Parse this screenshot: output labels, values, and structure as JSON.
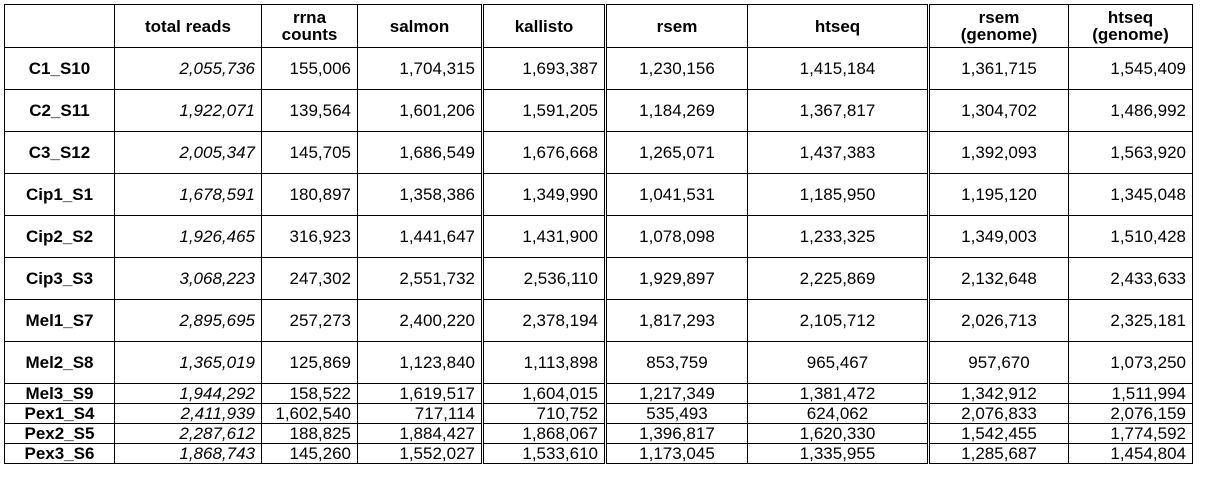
{
  "table": {
    "headers": [
      "",
      "total reads",
      "rrna counts",
      "salmon",
      "kallisto",
      "rsem",
      "htseq",
      "rsem (genome)",
      "htseq (genome)"
    ],
    "header_lines": [
      [
        "",
        ""
      ],
      [
        "total reads",
        ""
      ],
      [
        "rrna",
        "counts"
      ],
      [
        "salmon",
        ""
      ],
      [
        "kallisto",
        ""
      ],
      [
        "rsem",
        ""
      ],
      [
        "htseq",
        ""
      ],
      [
        "rsem",
        "(genome)"
      ],
      [
        "htseq",
        "(genome)"
      ]
    ],
    "rows": [
      {
        "sample": "C1_S10",
        "total_reads": "2,055,736",
        "rrna_counts": "155,006",
        "salmon": "1,704,315",
        "kallisto": "1,693,387",
        "rsem": "1,230,156",
        "htseq": "1,415,184",
        "rsem_genome": "1,361,715",
        "htseq_genome": "1,545,409"
      },
      {
        "sample": "C2_S11",
        "total_reads": "1,922,071",
        "rrna_counts": "139,564",
        "salmon": "1,601,206",
        "kallisto": "1,591,205",
        "rsem": "1,184,269",
        "htseq": "1,367,817",
        "rsem_genome": "1,304,702",
        "htseq_genome": "1,486,992"
      },
      {
        "sample": "C3_S12",
        "total_reads": "2,005,347",
        "rrna_counts": "145,705",
        "salmon": "1,686,549",
        "kallisto": "1,676,668",
        "rsem": "1,265,071",
        "htseq": "1,437,383",
        "rsem_genome": "1,392,093",
        "htseq_genome": "1,563,920"
      },
      {
        "sample": "Cip1_S1",
        "total_reads": "1,678,591",
        "rrna_counts": "180,897",
        "salmon": "1,358,386",
        "kallisto": "1,349,990",
        "rsem": "1,041,531",
        "htseq": "1,185,950",
        "rsem_genome": "1,195,120",
        "htseq_genome": "1,345,048"
      },
      {
        "sample": "Cip2_S2",
        "total_reads": "1,926,465",
        "rrna_counts": "316,923",
        "salmon": "1,441,647",
        "kallisto": "1,431,900",
        "rsem": "1,078,098",
        "htseq": "1,233,325",
        "rsem_genome": "1,349,003",
        "htseq_genome": "1,510,428"
      },
      {
        "sample": "Cip3_S3",
        "total_reads": "3,068,223",
        "rrna_counts": "247,302",
        "salmon": "2,551,732",
        "kallisto": "2,536,110",
        "rsem": "1,929,897",
        "htseq": "2,225,869",
        "rsem_genome": "2,132,648",
        "htseq_genome": "2,433,633"
      },
      {
        "sample": "Mel1_S7",
        "total_reads": "2,895,695",
        "rrna_counts": "257,273",
        "salmon": "2,400,220",
        "kallisto": "2,378,194",
        "rsem": "1,817,293",
        "htseq": "2,105,712",
        "rsem_genome": "2,026,713",
        "htseq_genome": "2,325,181"
      },
      {
        "sample": "Mel2_S8",
        "total_reads": "1,365,019",
        "rrna_counts": "125,869",
        "salmon": "1,123,840",
        "kallisto": "1,113,898",
        "rsem": "853,759",
        "htseq": "965,467",
        "rsem_genome": "957,670",
        "htseq_genome": "1,073,250"
      },
      {
        "sample": "Mel3_S9",
        "total_reads": "1,944,292",
        "rrna_counts": "158,522",
        "salmon": "1,619,517",
        "kallisto": "1,604,015",
        "rsem": "1,217,349",
        "htseq": "1,381,472",
        "rsem_genome": "1,342,912",
        "htseq_genome": "1,511,994"
      },
      {
        "sample": "Pex1_S4",
        "total_reads": "2,411,939",
        "rrna_counts": "1,602,540",
        "salmon": "717,114",
        "kallisto": "710,752",
        "rsem": "535,493",
        "htseq": "624,062",
        "rsem_genome": "2,076,833",
        "htseq_genome": "2,076,159"
      },
      {
        "sample": "Pex2_S5",
        "total_reads": "2,287,612",
        "rrna_counts": "188,825",
        "salmon": "1,884,427",
        "kallisto": "1,868,067",
        "rsem": "1,396,817",
        "htseq": "1,620,330",
        "rsem_genome": "1,542,455",
        "htseq_genome": "1,774,592"
      },
      {
        "sample": "Pex3_S6",
        "total_reads": "1,868,743",
        "rrna_counts": "145,260",
        "salmon": "1,552,027",
        "kallisto": "1,533,610",
        "rsem": "1,173,045",
        "htseq": "1,335,955",
        "rsem_genome": "1,285,687",
        "htseq_genome": "1,454,804"
      }
    ]
  }
}
